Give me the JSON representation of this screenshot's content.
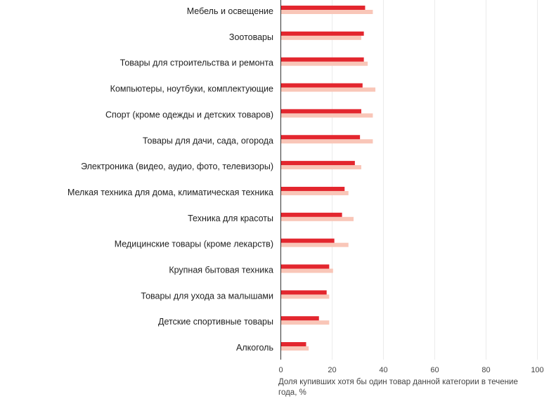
{
  "chart_data": {
    "type": "bar",
    "orientation": "horizontal",
    "categories": [
      "Мебель и освещение",
      "Зоотовары",
      "Товары для строительства и ремонта",
      "Компьютеры, ноутбуки, комплектующие",
      "Спорт (кроме одежды и детских товаров)",
      "Товары для дачи, сада, огорода",
      "Электроника (видео, аудио, фото, телевизоры)",
      "Мелкая техника для дома, климатическая техника",
      "Техника для красоты",
      "Медицинские товары (кроме лекарств)",
      "Крупная бытовая техника",
      "Товары для ухода за малышами",
      "Детские спортивные товары",
      "Алкоголь"
    ],
    "series": [
      {
        "color": "#e3262e",
        "values": [
          33,
          32.5,
          32.5,
          32,
          31.5,
          31,
          29,
          25,
          24,
          21,
          19,
          18,
          15,
          10
        ]
      },
      {
        "color": "#f9c6b8",
        "values": [
          36,
          31.5,
          34,
          37,
          36,
          36,
          31.5,
          26.5,
          28.5,
          26.5,
          20.5,
          19,
          19,
          11
        ]
      }
    ],
    "xticks": [
      "0",
      "20",
      "40",
      "60",
      "80",
      "100"
    ],
    "xlim": [
      0,
      100
    ],
    "xlabel": "Доля купивших хотя бы один товар данной категории в течение года, %",
    "xlabel_lines": [
      "Доля купивших хотя бы один товар данной категории в течение",
      "года, %"
    ],
    "grid": true,
    "legend": "none"
  }
}
